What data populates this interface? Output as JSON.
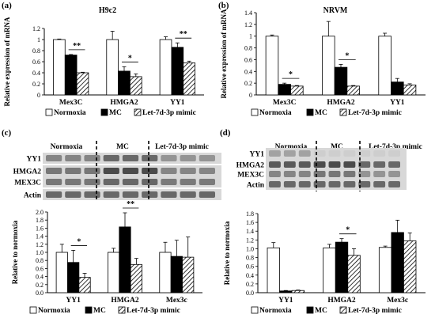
{
  "figure": {
    "panels": [
      {
        "letter": "(a)",
        "title": "H9c2"
      },
      {
        "letter": "(b)",
        "title": "NRVM"
      },
      {
        "letter": "(c)",
        "title": ""
      },
      {
        "letter": "(d)",
        "title": ""
      }
    ],
    "legend": [
      "Normoxia",
      "MC",
      "Let-7d-3p mimic"
    ],
    "blots": {
      "c": {
        "groups": [
          "Normoxia",
          "MC",
          "Let-7d-3p mimic"
        ],
        "rows": [
          "YY1",
          "HMGA2",
          "MEX3C",
          "Actin"
        ]
      },
      "d": {
        "groups": [
          "Normoxia",
          "MC",
          "Let-7d-3p mimic"
        ],
        "rows": [
          "YY1",
          "HMGA2",
          "MEX3C",
          "Actin"
        ]
      }
    }
  },
  "chart_data": [
    {
      "id": "a",
      "type": "bar",
      "title": "H9c2",
      "ylabel": "Relative expression of mRNA",
      "xlabel": "",
      "categories": [
        "Mex3C",
        "HMGA2",
        "YY1"
      ],
      "ylim": [
        0,
        1.2
      ],
      "yticks": [
        "0",
        "0.2",
        "0.4",
        "0.6",
        "0.8",
        "1",
        "1.2"
      ],
      "series": [
        {
          "name": "Normoxia",
          "values": [
            1.0,
            1.0,
            1.0
          ],
          "errors": [
            0.01,
            0.15,
            0.05
          ]
        },
        {
          "name": "MC",
          "values": [
            0.72,
            0.43,
            0.86
          ],
          "errors": [
            0.01,
            0.08,
            0.08
          ]
        },
        {
          "name": "Let-7d-3p mimic",
          "values": [
            0.4,
            0.33,
            0.58
          ],
          "errors": [
            0.01,
            0.05,
            0.03
          ]
        }
      ],
      "significance": [
        {
          "category": 0,
          "from": 1,
          "to": 2,
          "label": "**"
        },
        {
          "category": 1,
          "from": 1,
          "to": 2,
          "label": "*"
        },
        {
          "category": 2,
          "from": 1,
          "to": 2,
          "label": "**"
        }
      ]
    },
    {
      "id": "b",
      "type": "bar",
      "title": "NRVM",
      "ylabel": "Relative expression of mRNA",
      "xlabel": "",
      "categories": [
        "Mex3C",
        "HMGA2",
        "YY1"
      ],
      "ylim": [
        0,
        1.4
      ],
      "yticks": [
        "0",
        "0.2",
        "0.4",
        "0.6",
        "0.8",
        "1",
        "1.2",
        "1.4"
      ],
      "series": [
        {
          "name": "Normoxia",
          "values": [
            1.0,
            1.0,
            1.0
          ],
          "errors": [
            0.02,
            0.25,
            0.05
          ]
        },
        {
          "name": "MC",
          "values": [
            0.18,
            0.47,
            0.22
          ],
          "errors": [
            0.02,
            0.05,
            0.06
          ]
        },
        {
          "name": "Let-7d-3p mimic",
          "values": [
            0.15,
            0.15,
            0.17
          ],
          "errors": [
            0.01,
            0.01,
            0.02
          ]
        }
      ],
      "significance": [
        {
          "category": 0,
          "from": 1,
          "to": 2,
          "label": "*"
        },
        {
          "category": 1,
          "from": 1,
          "to": 2,
          "label": "*"
        }
      ]
    },
    {
      "id": "c",
      "type": "bar",
      "title": "",
      "ylabel": "Relative to normoxia",
      "xlabel": "",
      "categories": [
        "YY1",
        "HMGA2",
        "Mex3c"
      ],
      "ylim": [
        0,
        2.0
      ],
      "yticks": [
        "0.0",
        "0.2",
        "0.4",
        "0.6",
        "0.8",
        "1.0",
        "1.2",
        "1.4",
        "1.6",
        "1.8",
        "2.0"
      ],
      "series": [
        {
          "name": "Normoxia",
          "values": [
            1.0,
            1.0,
            1.0
          ],
          "errors": [
            0.2,
            0.1,
            0.25
          ]
        },
        {
          "name": "MC",
          "values": [
            0.75,
            1.63,
            0.9
          ],
          "errors": [
            0.3,
            0.35,
            0.4
          ]
        },
        {
          "name": "Let-7d-3p mimic",
          "values": [
            0.38,
            0.7,
            0.88
          ],
          "errors": [
            0.1,
            0.15,
            0.5
          ]
        }
      ],
      "significance": [
        {
          "category": 0,
          "from": 1,
          "to": 2,
          "label": "*"
        },
        {
          "category": 1,
          "from": 1,
          "to": 2,
          "label": "**"
        }
      ]
    },
    {
      "id": "d",
      "type": "bar",
      "title": "",
      "ylabel": "Relative to normoxia",
      "xlabel": "",
      "categories": [
        "YY1",
        "HMGA2",
        "Mex3c"
      ],
      "ylim": [
        0,
        1.8
      ],
      "yticks": [
        "0.0",
        "0.2",
        "0.4",
        "0.6",
        "0.8",
        "1.0",
        "1.2",
        "1.4",
        "1.6",
        "1.8"
      ],
      "series": [
        {
          "name": "Normoxia",
          "values": [
            1.02,
            1.02,
            1.03
          ],
          "errors": [
            0.12,
            0.08,
            0.03
          ]
        },
        {
          "name": "MC",
          "values": [
            0.04,
            1.15,
            1.37
          ],
          "errors": [
            0.01,
            0.08,
            0.28
          ]
        },
        {
          "name": "Let-7d-3p mimic",
          "values": [
            0.05,
            0.85,
            1.18
          ],
          "errors": [
            0.01,
            0.15,
            0.18
          ]
        }
      ],
      "significance": [
        {
          "category": 1,
          "from": 1,
          "to": 2,
          "label": "*"
        }
      ]
    }
  ]
}
